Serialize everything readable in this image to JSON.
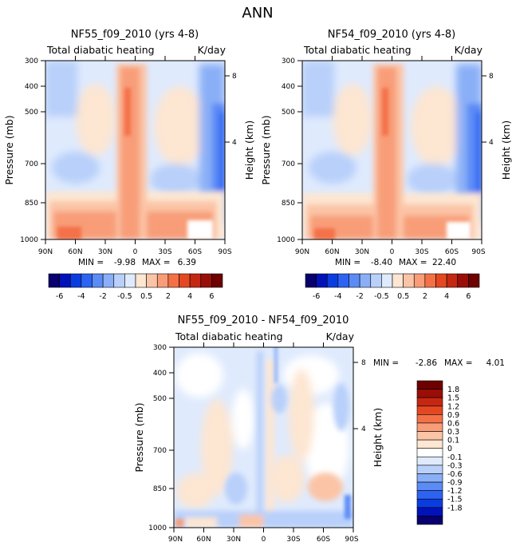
{
  "figure_title": "ANN",
  "panels": [
    {
      "id": "left",
      "title": "NF55_f09_2010 (yrs 4-8)",
      "subtitle_left": "Total diabatic heating",
      "subtitle_right": "K/day",
      "ylabel": "Pressure (mb)",
      "ylabel_right": "Height (km)",
      "min_label": "MIN =",
      "min_value": "-9.98",
      "max_label": "MAX =",
      "max_value": "6.39"
    },
    {
      "id": "right",
      "title": "NF54_f09_2010 (yrs 4-8)",
      "subtitle_left": "Total diabatic heating",
      "subtitle_right": "K/day",
      "ylabel": "Pressure (mb)",
      "ylabel_right": "Height (km)",
      "min_label": "MIN =",
      "min_value": "-8.40",
      "max_label": "MAX =",
      "max_value": "22.40"
    },
    {
      "id": "diff",
      "title": "NF55_f09_2010 - NF54_f09_2010",
      "subtitle_left": "Total diabatic heating",
      "subtitle_right": "K/day",
      "ylabel": "Pressure (mb)",
      "ylabel_right": "Height (km)",
      "min_label": "MIN =",
      "min_value": "-2.86",
      "max_label": "MAX =",
      "max_value": "4.01"
    }
  ],
  "chart_data": [
    {
      "type": "heatmap",
      "panel": "left",
      "title": "NF55_f09_2010 (yrs 4-8)",
      "x_ticks": [
        "90N",
        "60N",
        "30N",
        "0",
        "30S",
        "60S",
        "90S"
      ],
      "x_range": [
        90,
        -90
      ],
      "y_ticks": [
        "300",
        "400",
        "500",
        "700",
        "850",
        "1000"
      ],
      "y_range_mb": [
        1000,
        300
      ],
      "y2_ticks": [
        "8",
        "4"
      ],
      "colorbar_levels": [
        "-6",
        "-4",
        "-2",
        "-0.5",
        "0.5",
        "2",
        "4",
        "6"
      ],
      "min": -9.98,
      "max": 6.39
    },
    {
      "type": "heatmap",
      "panel": "right",
      "title": "NF54_f09_2010 (yrs 4-8)",
      "x_ticks": [
        "90N",
        "60N",
        "30N",
        "0",
        "30S",
        "60S",
        "90S"
      ],
      "x_range": [
        90,
        -90
      ],
      "y_ticks": [
        "300",
        "400",
        "500",
        "700",
        "850",
        "1000"
      ],
      "y_range_mb": [
        1000,
        300
      ],
      "y2_ticks": [
        "8",
        "4"
      ],
      "colorbar_levels": [
        "-6",
        "-4",
        "-2",
        "-0.5",
        "0.5",
        "2",
        "4",
        "6"
      ],
      "min": -8.4,
      "max": 22.4
    },
    {
      "type": "heatmap",
      "panel": "diff",
      "title": "NF55_f09_2010 - NF54_f09_2010",
      "x_ticks": [
        "90N",
        "60N",
        "30N",
        "0",
        "30S",
        "60S",
        "90S"
      ],
      "x_range": [
        90,
        -90
      ],
      "y_ticks": [
        "300",
        "400",
        "500",
        "700",
        "850",
        "1000"
      ],
      "y_range_mb": [
        1000,
        300
      ],
      "y2_ticks": [
        "8",
        "4"
      ],
      "colorbar_levels": [
        "1.8",
        "1.5",
        "1.2",
        "0.9",
        "0.6",
        "0.3",
        "0.1",
        "0",
        "-0.1",
        "-0.3",
        "-0.6",
        "-0.9",
        "-1.2",
        "-1.5",
        "-1.8"
      ],
      "min": -2.86,
      "max": 4.01
    }
  ],
  "colors": {
    "full_scale": [
      "#08006e",
      "#0012b8",
      "#0a3de0",
      "#2c63f2",
      "#5b8bf5",
      "#8aaff7",
      "#b8d0fa",
      "#dfeafd",
      "#fde6d2",
      "#fbc4a6",
      "#f89d78",
      "#f47148",
      "#e44822",
      "#c52812",
      "#9a0e08",
      "#6e0000"
    ],
    "diff_scale": [
      "#6e0000",
      "#9a0e08",
      "#c52812",
      "#e44822",
      "#f47148",
      "#f89d78",
      "#fbc4a6",
      "#fde6d2",
      "#ffffff",
      "#dfeafd",
      "#b8d0fa",
      "#8aaff7",
      "#5b8bf5",
      "#2c63f2",
      "#0a3de0",
      "#0012b8",
      "#08006e"
    ]
  }
}
